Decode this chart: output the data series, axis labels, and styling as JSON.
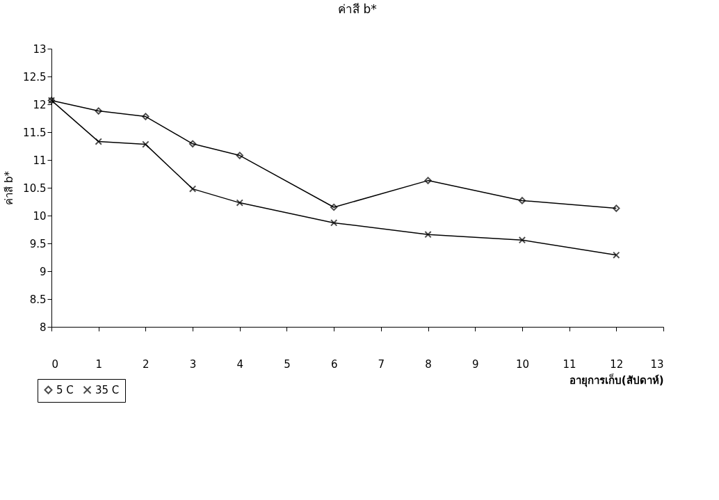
{
  "chart_data": {
    "type": "line",
    "title": "ค่าสี b*",
    "xlabel": "อายุการเก็บ(สัปดาห์)",
    "ylabel": "ค่าสี b*",
    "x": [
      0,
      1,
      2,
      3,
      4,
      6,
      8,
      10,
      12
    ],
    "series": [
      {
        "name": "5 C",
        "color": "#000000",
        "marker": "diamond",
        "values": [
          12.07,
          11.88,
          11.78,
          11.29,
          11.08,
          10.15,
          10.63,
          10.27,
          10.13
        ]
      },
      {
        "name": "35 C",
        "color": "#000000",
        "marker": "cross",
        "values": [
          12.07,
          11.33,
          11.28,
          10.48,
          10.23,
          9.87,
          9.66,
          9.56,
          9.29
        ]
      }
    ],
    "xlim": [
      0,
      13
    ],
    "xticks": [
      0,
      1,
      2,
      3,
      4,
      5,
      6,
      7,
      8,
      9,
      10,
      11,
      12,
      13
    ],
    "ylim": [
      8,
      13
    ],
    "yticks": [
      8,
      8.5,
      9,
      9.5,
      10,
      10.5,
      11,
      11.5,
      12,
      12.5,
      13
    ],
    "grid": false,
    "legend": "bottom left"
  }
}
